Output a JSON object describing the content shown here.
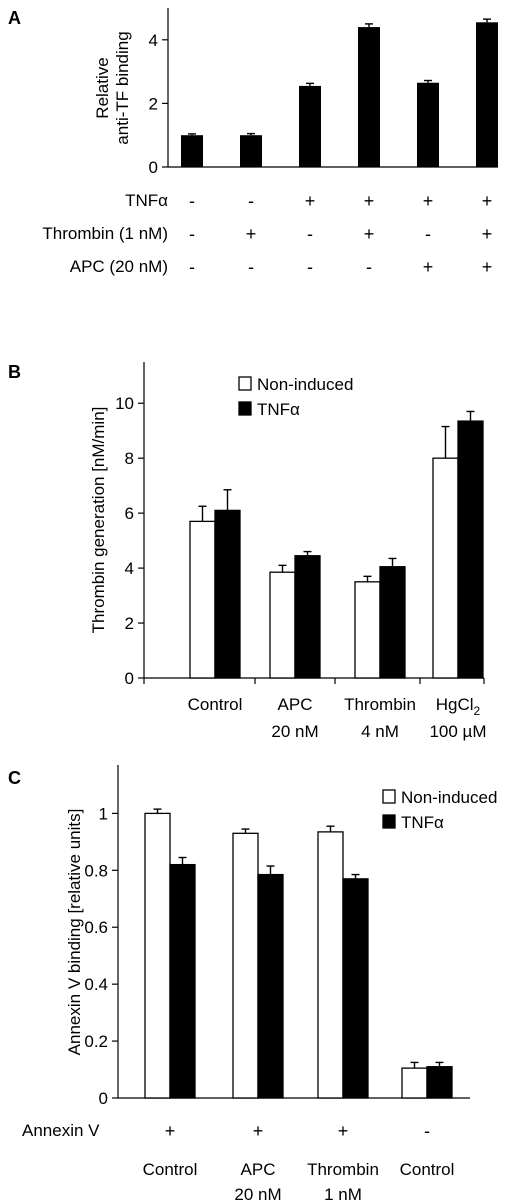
{
  "chart_data": [
    {
      "panel": "A",
      "type": "bar",
      "ylabel_lines": [
        "Relative",
        "anti-TF binding"
      ],
      "ylim": [
        0,
        5
      ],
      "yticks": [
        0,
        2,
        4
      ],
      "values": [
        1.0,
        1.0,
        2.55,
        4.4,
        2.65,
        4.55
      ],
      "errors": [
        0.04,
        0.05,
        0.08,
        0.1,
        0.07,
        0.1
      ],
      "conditions": [
        {
          "label": "TNFα",
          "signs": [
            "-",
            "-",
            "+",
            "+",
            "+",
            "+"
          ]
        },
        {
          "label": "Thrombin (1 nM)",
          "signs": [
            "-",
            "+",
            "-",
            "+",
            "-",
            "+"
          ]
        },
        {
          "label": "APC (20 nM)",
          "signs": [
            "-",
            "-",
            "-",
            "-",
            "+",
            "+"
          ]
        }
      ]
    },
    {
      "panel": "B",
      "type": "bar",
      "ylabel": "Thrombin generation [nM/min]",
      "ylim": [
        0,
        11.5
      ],
      "yticks": [
        0,
        2,
        4,
        6,
        8,
        10
      ],
      "categories": [
        {
          "line1": "Control",
          "line2": ""
        },
        {
          "line1": "APC",
          "line2": "20 nM"
        },
        {
          "line1": "Thrombin",
          "line2": "4 nM"
        },
        {
          "line1": "HgCl",
          "line1_sub": "2",
          "line2": "100 µM"
        }
      ],
      "series": [
        {
          "name": "Non-induced",
          "values": [
            5.7,
            3.85,
            3.5,
            8.0
          ],
          "errors": [
            0.55,
            0.25,
            0.2,
            1.15
          ],
          "color": "#ffffff"
        },
        {
          "name": "TNFα",
          "values": [
            6.1,
            4.45,
            4.05,
            9.35
          ],
          "errors": [
            0.75,
            0.15,
            0.3,
            0.35
          ],
          "color": "#000000"
        }
      ],
      "legend_position": "top-center"
    },
    {
      "panel": "C",
      "type": "bar",
      "ylabel": "Annexin V binding [relative units]",
      "ylim": [
        0,
        1.17
      ],
      "yticks": [
        "0",
        "0.2",
        "0.4",
        "0.6",
        "0.8",
        "1"
      ],
      "ytick_values": [
        0,
        0.2,
        0.4,
        0.6,
        0.8,
        1.0
      ],
      "categories": [
        {
          "line1": "Control",
          "line2": ""
        },
        {
          "line1": "APC",
          "line2": "20 nM"
        },
        {
          "line1": "Thrombin",
          "line2": "1 nM"
        },
        {
          "line1": "Control",
          "line2": ""
        }
      ],
      "series": [
        {
          "name": "Non-induced",
          "values": [
            1.0,
            0.93,
            0.935,
            0.105
          ],
          "errors": [
            0.015,
            0.015,
            0.02,
            0.02
          ],
          "color": "#ffffff"
        },
        {
          "name": "TNFα",
          "values": [
            0.82,
            0.785,
            0.77,
            0.11
          ],
          "errors": [
            0.025,
            0.03,
            0.015,
            0.015
          ],
          "color": "#000000"
        }
      ],
      "condition": {
        "label": "Annexin V",
        "signs": [
          "+",
          "+",
          "+",
          "-"
        ]
      },
      "legend_position": "top-right"
    }
  ]
}
